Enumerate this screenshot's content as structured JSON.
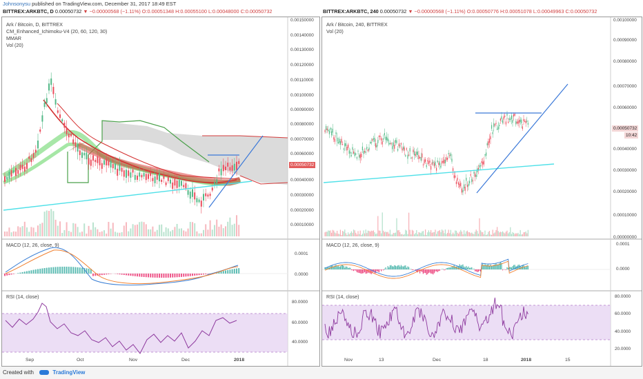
{
  "header": {
    "user": "Johnsonysu",
    "published": "published on TradingView.com, December 31, 2017 18:49 EST"
  },
  "left": {
    "symbol": "BITTREX:ARKBTC, D",
    "price": "0.00050732",
    "change": "▼ −0.00000568 (−1.11%)",
    "ohlc": "O:0.00051348 H:0.00055100 L:0.00048000 C:0.00050732",
    "legend": [
      "Ark / Bitcoin, D, BITTREX",
      "CM_Enhanced_Ichimoku-V4 (20, 60, 120, 30)",
      "MMAR",
      "Vol (20)"
    ],
    "price_ticks": [
      "0.00150000",
      "0.00140000",
      "0.00130000",
      "0.00120000",
      "0.00110000",
      "0.00100000",
      "0.00090000",
      "0.00080000",
      "0.00070000",
      "0.00060000",
      "0.00050732",
      "0.00040000",
      "0.00030000",
      "0.00020000",
      "0.00010000"
    ],
    "macd_label": "MACD (12, 26, close, 9)",
    "macd_ticks": [
      "0.0001",
      "0.0000"
    ],
    "rsi_label": "RSI (14, close)",
    "rsi_ticks": [
      "80.0000",
      "60.0000",
      "40.0000"
    ],
    "x_ticks": [
      "Sep",
      "Oct",
      "Nov",
      "Dec",
      "2018"
    ]
  },
  "right": {
    "symbol": "BITTREX:ARKBTC, 240",
    "price": "0.00050732",
    "change": "▼ −0.00000568 (−1.11%)",
    "ohlc": "O:0.00050776 H:0.00051078 L:0.00049963 C:0.00050732",
    "legend": [
      "Ark / Bitcoin, 240, BITTREX",
      "Vol (20)"
    ],
    "price_ticks": [
      "0.00100000",
      "0.00090000",
      "0.00080000",
      "0.00070000",
      "0.00060000",
      "0.00050732",
      "0.00040000",
      "0.00030000",
      "0.00020000",
      "0.00010000",
      "0.00000000"
    ],
    "countdown": "10:42",
    "macd_label": "MACD (12, 26, close, 9)",
    "macd_ticks": [
      "0.0001",
      "0.0000"
    ],
    "rsi_label": "RSI (14, close)",
    "rsi_ticks": [
      "80.0000",
      "60.0000",
      "40.0000",
      "20.0000"
    ],
    "x_ticks": [
      "Nov",
      "13",
      "Dec",
      "18",
      "2018",
      "15"
    ]
  },
  "footer": {
    "created": "Created with",
    "brand": "TradingView"
  },
  "colors": {
    "up": "#53b987",
    "down": "#eb4d5c",
    "cyan": "#4ee0e8",
    "blue": "#3a78d8",
    "macd": "#3a7fd5",
    "signal": "#f08030",
    "rsi": "#8e3a9e"
  }
}
